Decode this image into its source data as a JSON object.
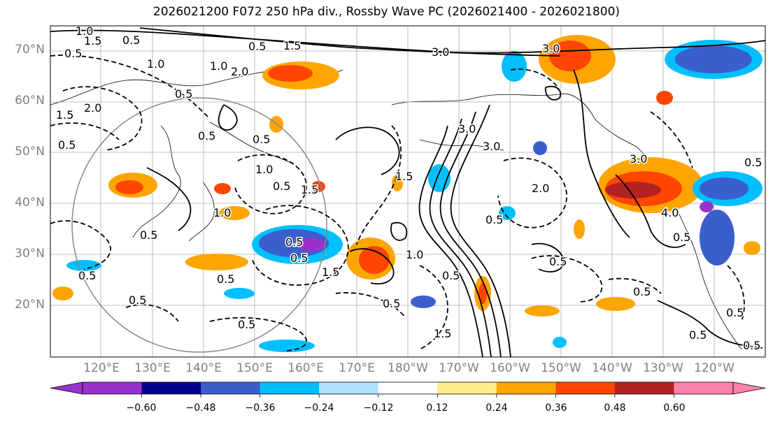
{
  "title": "2026021200 F072 250 hPa div., Rossby Wave PC (2026021400 - 2026021800)",
  "lat_labels": [
    "70°N",
    "60°N",
    "50°N",
    "40°N",
    "30°N",
    "20°N"
  ],
  "lon_labels": [
    "120°E",
    "130°E",
    "140°E",
    "150°E",
    "160°E",
    "170°E",
    "180°W",
    "170°W",
    "160°W",
    "150°W",
    "140°W",
    "130°W",
    "120°W"
  ],
  "colorbar": {
    "ticks": [
      "−0.60",
      "−0.48",
      "−0.36",
      "−0.24",
      "−0.12",
      "0.12",
      "0.24",
      "0.36",
      "0.48",
      "0.60"
    ],
    "colors": [
      "#9932cc",
      "#00008b",
      "#3a5fcd",
      "#00bfff",
      "#b0e2ff",
      "#ffffff",
      "#ffec8b",
      "#ffa500",
      "#ff4500",
      "#b22222",
      "#ff82ab"
    ]
  },
  "contour_labels": [
    "1.0",
    "1.5",
    "0.5",
    "0.5",
    "1.5",
    "2.0",
    "1.5",
    "3.0",
    "1.0",
    "0.5",
    "0.5",
    "1.0",
    "0.5",
    "2.0",
    "0.5",
    "3.0",
    "0.5",
    "0.5",
    "1.0",
    "1.5",
    "1.5",
    "0.5",
    "0.5",
    "1.0",
    "0.5",
    "0.5",
    "0.5",
    "0.5",
    "0.5",
    "0.5",
    "0.5",
    "1.0",
    "1.5",
    "3.0",
    "3.0",
    "3.0",
    "2.0",
    "0.5",
    "0.5",
    "1.5",
    "0.5",
    "0.5",
    "0.5",
    "0.5",
    "0.5",
    "0.5",
    "4.0"
  ]
}
